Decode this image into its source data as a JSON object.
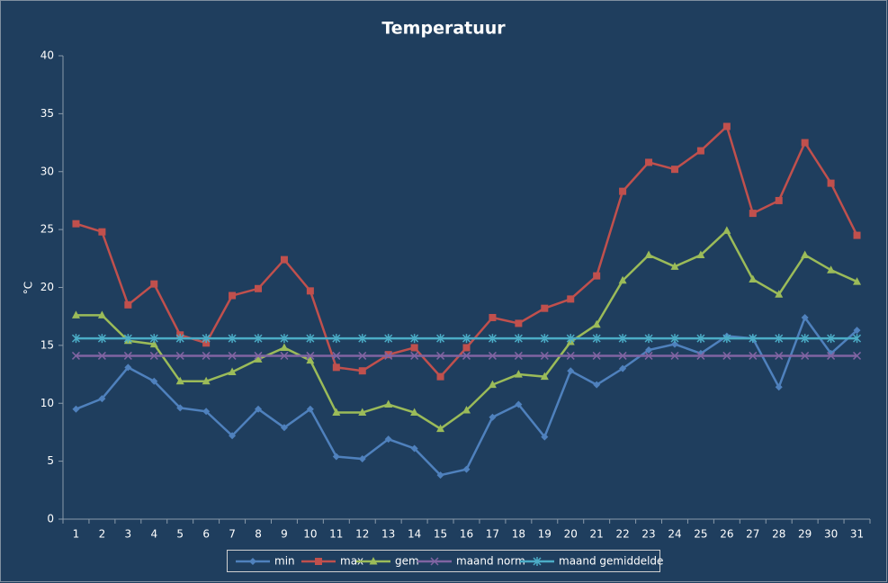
{
  "chart_data": {
    "type": "line",
    "title": "Temperatuur",
    "y_label": "°C",
    "categories": [
      "1",
      "2",
      "3",
      "4",
      "5",
      "6",
      "7",
      "8",
      "9",
      "10",
      "11",
      "12",
      "13",
      "14",
      "15",
      "16",
      "17",
      "18",
      "19",
      "20",
      "21",
      "22",
      "23",
      "24",
      "25",
      "26",
      "27",
      "28",
      "29",
      "30",
      "31"
    ],
    "series": [
      {
        "name": "min",
        "color": "#4f81bd",
        "marker": "diamond",
        "values": [
          9.5,
          10.4,
          13.1,
          11.9,
          9.6,
          9.3,
          7.2,
          9.5,
          7.9,
          9.5,
          5.4,
          5.2,
          6.9,
          6.1,
          3.8,
          4.3,
          8.8,
          9.9,
          7.1,
          12.8,
          11.6,
          13.0,
          14.6,
          15.1,
          14.3,
          15.8,
          15.6,
          11.4,
          17.4,
          14.3,
          16.3
        ]
      },
      {
        "name": "max",
        "color": "#c0504d",
        "marker": "square",
        "values": [
          25.5,
          24.8,
          18.5,
          20.3,
          15.9,
          15.2,
          19.3,
          19.9,
          22.4,
          19.7,
          13.1,
          12.8,
          14.2,
          14.8,
          12.3,
          14.8,
          17.4,
          16.9,
          18.2,
          19.0,
          21.0,
          28.3,
          30.8,
          30.2,
          31.8,
          33.9,
          26.4,
          27.5,
          32.5,
          29.0,
          24.5
        ]
      },
      {
        "name": "gem",
        "color": "#9bbb59",
        "marker": "triangle",
        "values": [
          17.6,
          17.6,
          15.4,
          15.1,
          11.9,
          11.9,
          12.7,
          13.8,
          14.8,
          13.7,
          9.2,
          9.2,
          9.9,
          9.2,
          7.8,
          9.4,
          11.6,
          12.5,
          12.3,
          15.3,
          16.8,
          20.6,
          22.8,
          21.8,
          22.8,
          24.9,
          20.7,
          19.4,
          22.8,
          21.5,
          20.5
        ]
      },
      {
        "name": "maand norm",
        "color": "#8064a2",
        "marker": "x",
        "values": [
          14.1,
          14.1,
          14.1,
          14.1,
          14.1,
          14.1,
          14.1,
          14.1,
          14.1,
          14.1,
          14.1,
          14.1,
          14.1,
          14.1,
          14.1,
          14.1,
          14.1,
          14.1,
          14.1,
          14.1,
          14.1,
          14.1,
          14.1,
          14.1,
          14.1,
          14.1,
          14.1,
          14.1,
          14.1,
          14.1,
          14.1
        ]
      },
      {
        "name": "maand gemiddelde",
        "color": "#4bacc6",
        "marker": "star",
        "values": [
          15.6,
          15.6,
          15.6,
          15.6,
          15.6,
          15.6,
          15.6,
          15.6,
          15.6,
          15.6,
          15.6,
          15.6,
          15.6,
          15.6,
          15.6,
          15.6,
          15.6,
          15.6,
          15.6,
          15.6,
          15.6,
          15.6,
          15.6,
          15.6,
          15.6,
          15.6,
          15.6,
          15.6,
          15.6,
          15.6,
          15.6
        ]
      }
    ],
    "ylim": [
      0,
      40
    ],
    "yticks": [
      0,
      5,
      10,
      15,
      20,
      25,
      30,
      35,
      40
    ],
    "grid": false,
    "legend": "bottom"
  }
}
